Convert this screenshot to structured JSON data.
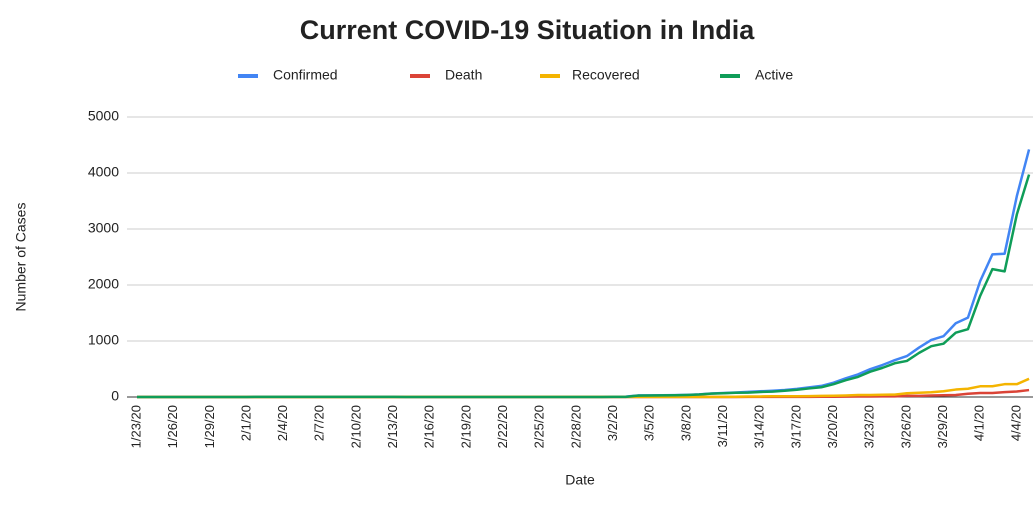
{
  "chart_data": {
    "type": "line",
    "title": "Current COVID-19 Situation in India",
    "x_label": "Date",
    "y_label": "Number of Cases",
    "categories": [
      "1/23/20",
      null,
      null,
      "1/26/20",
      null,
      null,
      "1/29/20",
      null,
      null,
      "2/1/20",
      null,
      null,
      "2/4/20",
      null,
      null,
      "2/7/20",
      null,
      null,
      "2/10/20",
      null,
      null,
      "2/13/20",
      null,
      null,
      "2/16/20",
      null,
      null,
      "2/19/20",
      null,
      null,
      "2/22/20",
      null,
      null,
      "2/25/20",
      null,
      null,
      "2/28/20",
      null,
      null,
      "3/2/20",
      null,
      null,
      "3/5/20",
      null,
      null,
      "3/8/20",
      null,
      null,
      "3/11/20",
      null,
      null,
      "3/14/20",
      null,
      null,
      "3/17/20",
      null,
      null,
      "3/20/20",
      null,
      null,
      "3/23/20",
      null,
      null,
      "3/26/20",
      null,
      null,
      "3/29/20",
      null,
      null,
      "4/1/20",
      null,
      null,
      "4/4/20",
      null
    ],
    "series": [
      {
        "name": "Confirmed",
        "color": "#4285f4",
        "values": [
          0,
          0,
          0,
          0,
          0,
          0,
          0,
          1,
          1,
          1,
          2,
          3,
          3,
          3,
          3,
          3,
          3,
          3,
          3,
          3,
          3,
          3,
          3,
          3,
          3,
          3,
          3,
          3,
          3,
          3,
          3,
          3,
          3,
          3,
          3,
          3,
          3,
          3,
          3,
          5,
          6,
          28,
          30,
          31,
          34,
          39,
          48,
          63,
          71,
          81,
          91,
          102,
          112,
          126,
          146,
          171,
          198,
          256,
          334,
          403,
          497,
          571,
          657,
          730,
          883,
          1019,
          1086,
          1317,
          1417,
          2069,
          2547,
          2559,
          3588,
          4421
        ]
      },
      {
        "name": "Death",
        "color": "#db4437",
        "values": [
          0,
          0,
          0,
          0,
          0,
          0,
          0,
          0,
          0,
          0,
          0,
          0,
          0,
          0,
          0,
          0,
          0,
          0,
          0,
          0,
          0,
          0,
          0,
          0,
          0,
          0,
          0,
          0,
          0,
          0,
          0,
          0,
          0,
          0,
          0,
          0,
          0,
          0,
          0,
          0,
          0,
          0,
          0,
          0,
          0,
          0,
          0,
          0,
          0,
          1,
          2,
          2,
          2,
          2,
          3,
          3,
          4,
          4,
          7,
          9,
          10,
          11,
          12,
          20,
          20,
          27,
          32,
          35,
          58,
          72,
          72,
          86,
          99,
          124
        ]
      },
      {
        "name": "Recovered",
        "color": "#f4b400",
        "values": [
          0,
          0,
          0,
          0,
          0,
          0,
          0,
          0,
          0,
          0,
          0,
          0,
          0,
          0,
          0,
          0,
          0,
          0,
          0,
          0,
          0,
          0,
          3,
          3,
          3,
          3,
          3,
          3,
          3,
          3,
          3,
          3,
          3,
          3,
          3,
          3,
          3,
          3,
          3,
          3,
          3,
          3,
          3,
          3,
          3,
          3,
          3,
          3,
          3,
          4,
          10,
          10,
          13,
          13,
          14,
          15,
          20,
          23,
          27,
          35,
          35,
          40,
          43,
          66,
          75,
          85,
          102,
          133,
          148,
          191,
          192,
          229,
          229,
          325
        ]
      },
      {
        "name": "Active",
        "color": "#0f9d58",
        "values": [
          0,
          0,
          0,
          0,
          0,
          0,
          0,
          1,
          1,
          1,
          2,
          3,
          3,
          3,
          3,
          3,
          3,
          3,
          3,
          3,
          3,
          3,
          0,
          0,
          0,
          0,
          0,
          0,
          0,
          0,
          0,
          0,
          0,
          0,
          0,
          0,
          0,
          0,
          0,
          2,
          3,
          25,
          27,
          28,
          31,
          36,
          45,
          60,
          68,
          76,
          79,
          90,
          97,
          111,
          129,
          153,
          174,
          229,
          300,
          359,
          452,
          520,
          602,
          644,
          788,
          907,
          952,
          1149,
          1211,
          1806,
          2283,
          2244,
          3260,
          3972
        ]
      }
    ],
    "ylim": [
      0,
      5000
    ],
    "yticks": [
      0,
      1000,
      2000,
      3000,
      4000,
      5000
    ],
    "grid": true,
    "legend": "top"
  }
}
